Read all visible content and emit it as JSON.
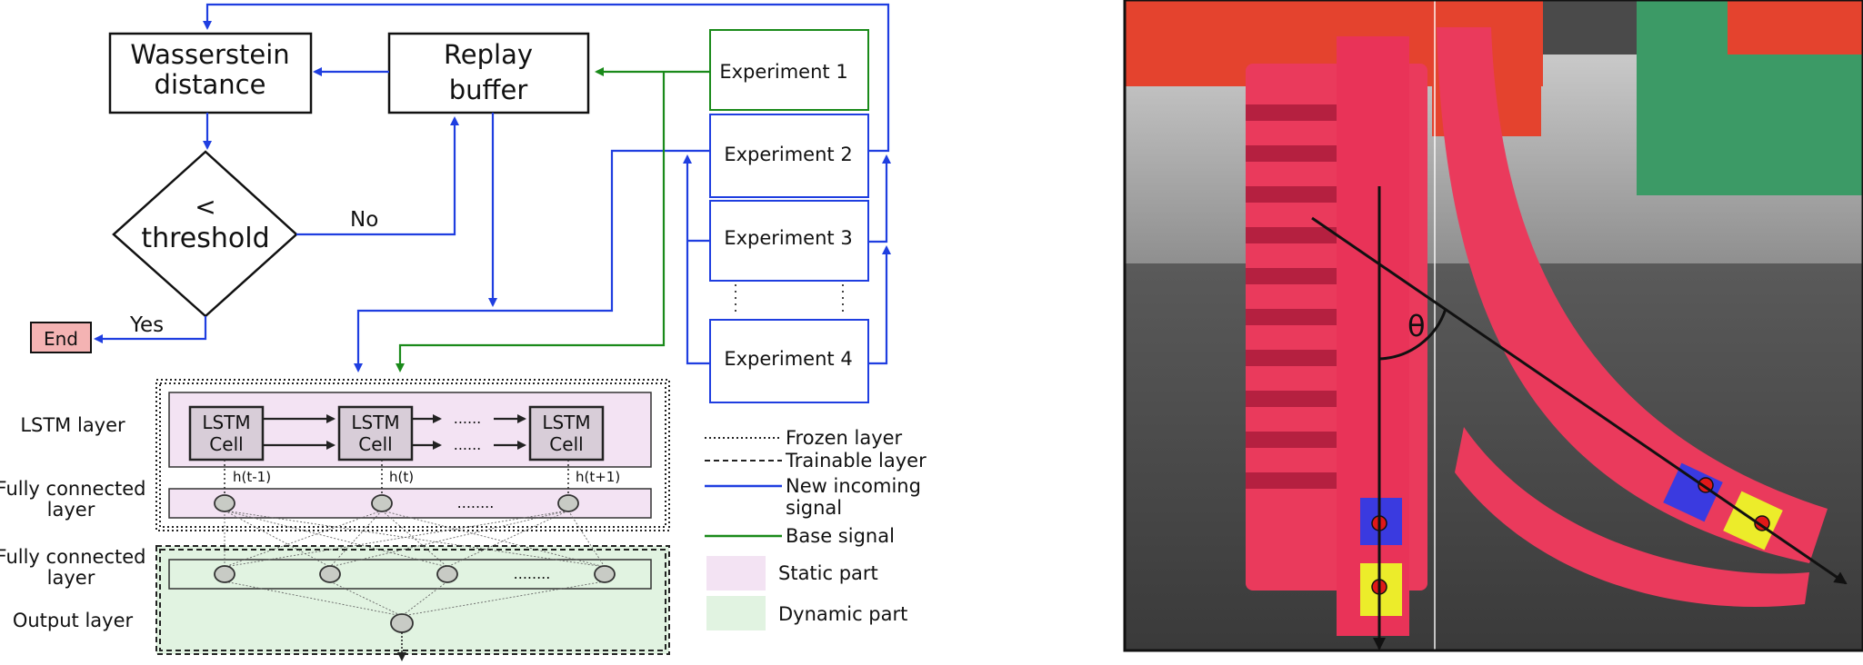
{
  "flowchart": {
    "wasserstein_line1": "Wasserstein",
    "wasserstein_line2": "distance",
    "replay_line1": "Replay",
    "replay_line2": "buffer",
    "decision_symbol": "<",
    "decision_label": "threshold",
    "no_label": "No",
    "yes_label": "Yes",
    "end_label": "End",
    "experiments": [
      "Experiment 1",
      "Experiment 2",
      "Experiment 3",
      "Experiment 4"
    ]
  },
  "network": {
    "lstm_layer_label": "LSTM layer",
    "fc_layer1_label_line1": "Fully connected",
    "fc_layer1_label_line2": "layer",
    "fc_layer2_label_line1": "Fully connected",
    "fc_layer2_label_line2": "layer",
    "output_layer_label": "Output layer",
    "lstm_cell_line1": "LSTM",
    "lstm_cell_line2": "Cell",
    "hidden_labels": [
      "h(t-1)",
      "h(t)",
      "h(t+1)"
    ],
    "dots_long": "........",
    "dots_short": "......"
  },
  "legend": {
    "frozen": "Frozen layer",
    "trainable": "Trainable layer",
    "new_signal_line1": "New incoming",
    "new_signal_line2": "signal",
    "base_signal": "Base signal",
    "static_part": "Static part",
    "dynamic_part": "Dynamic part"
  },
  "photo": {
    "angle_symbol": "θ"
  },
  "colors": {
    "blue": "#1f3ee0",
    "green": "#1a8a1a",
    "static_fill": "#f3e3f3",
    "dynamic_fill": "#e1f3e1",
    "end_fill": "#f4b3b3",
    "lstm_fill": "#d8cdd8",
    "soft_body": "#ea3a5c",
    "marker_blue": "#3a3ae0",
    "marker_yellow": "#ecec2a",
    "marker_red": "#e01818"
  }
}
